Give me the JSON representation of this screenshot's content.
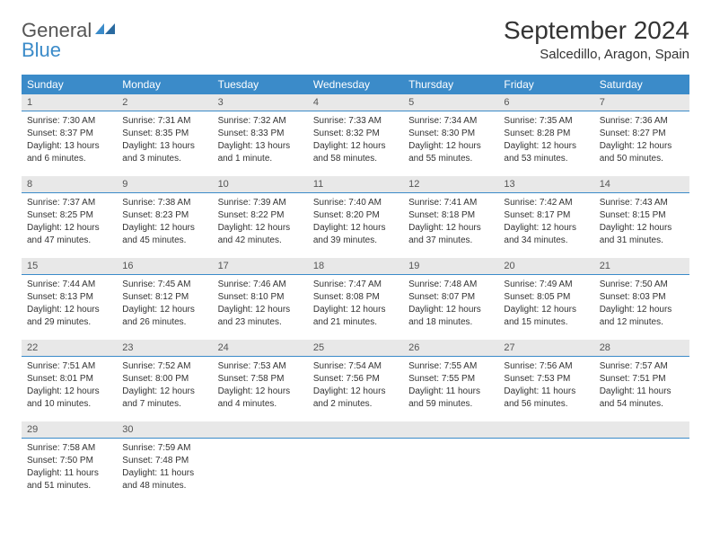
{
  "logo": {
    "line1": "General",
    "line2": "Blue"
  },
  "title": "September 2024",
  "location": "Salcedillo, Aragon, Spain",
  "colors": {
    "header_bg": "#3b8bc9",
    "header_text": "#ffffff",
    "daynum_bg": "#e8e8e8",
    "body_text": "#333333"
  },
  "weekdays": [
    "Sunday",
    "Monday",
    "Tuesday",
    "Wednesday",
    "Thursday",
    "Friday",
    "Saturday"
  ],
  "weeks": [
    {
      "nums": [
        "1",
        "2",
        "3",
        "4",
        "5",
        "6",
        "7"
      ],
      "cells": [
        {
          "sunrise": "7:30 AM",
          "sunset": "8:37 PM",
          "daylight": "13 hours and 6 minutes."
        },
        {
          "sunrise": "7:31 AM",
          "sunset": "8:35 PM",
          "daylight": "13 hours and 3 minutes."
        },
        {
          "sunrise": "7:32 AM",
          "sunset": "8:33 PM",
          "daylight": "13 hours and 1 minute."
        },
        {
          "sunrise": "7:33 AM",
          "sunset": "8:32 PM",
          "daylight": "12 hours and 58 minutes."
        },
        {
          "sunrise": "7:34 AM",
          "sunset": "8:30 PM",
          "daylight": "12 hours and 55 minutes."
        },
        {
          "sunrise": "7:35 AM",
          "sunset": "8:28 PM",
          "daylight": "12 hours and 53 minutes."
        },
        {
          "sunrise": "7:36 AM",
          "sunset": "8:27 PM",
          "daylight": "12 hours and 50 minutes."
        }
      ]
    },
    {
      "nums": [
        "8",
        "9",
        "10",
        "11",
        "12",
        "13",
        "14"
      ],
      "cells": [
        {
          "sunrise": "7:37 AM",
          "sunset": "8:25 PM",
          "daylight": "12 hours and 47 minutes."
        },
        {
          "sunrise": "7:38 AM",
          "sunset": "8:23 PM",
          "daylight": "12 hours and 45 minutes."
        },
        {
          "sunrise": "7:39 AM",
          "sunset": "8:22 PM",
          "daylight": "12 hours and 42 minutes."
        },
        {
          "sunrise": "7:40 AM",
          "sunset": "8:20 PM",
          "daylight": "12 hours and 39 minutes."
        },
        {
          "sunrise": "7:41 AM",
          "sunset": "8:18 PM",
          "daylight": "12 hours and 37 minutes."
        },
        {
          "sunrise": "7:42 AM",
          "sunset": "8:17 PM",
          "daylight": "12 hours and 34 minutes."
        },
        {
          "sunrise": "7:43 AM",
          "sunset": "8:15 PM",
          "daylight": "12 hours and 31 minutes."
        }
      ]
    },
    {
      "nums": [
        "15",
        "16",
        "17",
        "18",
        "19",
        "20",
        "21"
      ],
      "cells": [
        {
          "sunrise": "7:44 AM",
          "sunset": "8:13 PM",
          "daylight": "12 hours and 29 minutes."
        },
        {
          "sunrise": "7:45 AM",
          "sunset": "8:12 PM",
          "daylight": "12 hours and 26 minutes."
        },
        {
          "sunrise": "7:46 AM",
          "sunset": "8:10 PM",
          "daylight": "12 hours and 23 minutes."
        },
        {
          "sunrise": "7:47 AM",
          "sunset": "8:08 PM",
          "daylight": "12 hours and 21 minutes."
        },
        {
          "sunrise": "7:48 AM",
          "sunset": "8:07 PM",
          "daylight": "12 hours and 18 minutes."
        },
        {
          "sunrise": "7:49 AM",
          "sunset": "8:05 PM",
          "daylight": "12 hours and 15 minutes."
        },
        {
          "sunrise": "7:50 AM",
          "sunset": "8:03 PM",
          "daylight": "12 hours and 12 minutes."
        }
      ]
    },
    {
      "nums": [
        "22",
        "23",
        "24",
        "25",
        "26",
        "27",
        "28"
      ],
      "cells": [
        {
          "sunrise": "7:51 AM",
          "sunset": "8:01 PM",
          "daylight": "12 hours and 10 minutes."
        },
        {
          "sunrise": "7:52 AM",
          "sunset": "8:00 PM",
          "daylight": "12 hours and 7 minutes."
        },
        {
          "sunrise": "7:53 AM",
          "sunset": "7:58 PM",
          "daylight": "12 hours and 4 minutes."
        },
        {
          "sunrise": "7:54 AM",
          "sunset": "7:56 PM",
          "daylight": "12 hours and 2 minutes."
        },
        {
          "sunrise": "7:55 AM",
          "sunset": "7:55 PM",
          "daylight": "11 hours and 59 minutes."
        },
        {
          "sunrise": "7:56 AM",
          "sunset": "7:53 PM",
          "daylight": "11 hours and 56 minutes."
        },
        {
          "sunrise": "7:57 AM",
          "sunset": "7:51 PM",
          "daylight": "11 hours and 54 minutes."
        }
      ]
    },
    {
      "nums": [
        "29",
        "30",
        "",
        "",
        "",
        "",
        ""
      ],
      "cells": [
        {
          "sunrise": "7:58 AM",
          "sunset": "7:50 PM",
          "daylight": "11 hours and 51 minutes."
        },
        {
          "sunrise": "7:59 AM",
          "sunset": "7:48 PM",
          "daylight": "11 hours and 48 minutes."
        },
        null,
        null,
        null,
        null,
        null
      ]
    }
  ],
  "labels": {
    "sunrise": "Sunrise: ",
    "sunset": "Sunset: ",
    "daylight": "Daylight: "
  }
}
